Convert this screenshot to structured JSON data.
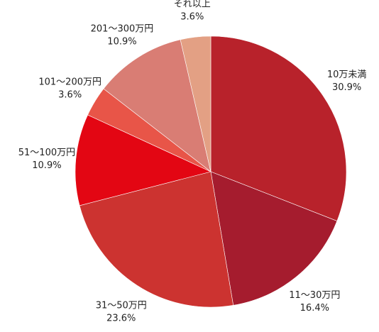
{
  "chart_data": {
    "type": "pie",
    "categories": [
      "10万未満",
      "11〜30万円",
      "31〜50万円",
      "51〜100万円",
      "101〜200万円",
      "201〜300万円",
      "それ以上"
    ],
    "values": [
      30.9,
      16.4,
      23.6,
      10.9,
      3.6,
      10.9,
      3.6
    ],
    "value_labels": [
      "30.9%",
      "16.4%",
      "23.6%",
      "10.9%",
      "3.6%",
      "10.9%",
      "3.6%"
    ],
    "colors": [
      "#b8222b",
      "#a51c2e",
      "#cc3330",
      "#e30613",
      "#e85548",
      "#d97d74",
      "#e3a084"
    ]
  }
}
